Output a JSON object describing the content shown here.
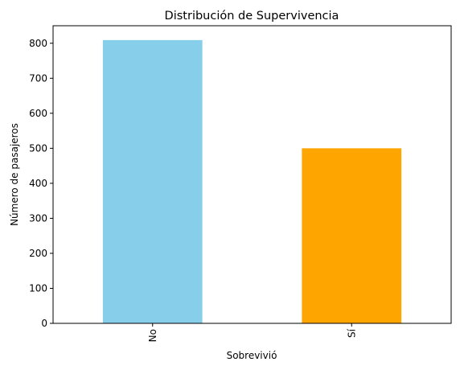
{
  "chart_data": {
    "type": "bar",
    "title": "Distribución de Supervivencia",
    "xlabel": "Sobrevivió",
    "ylabel": "Número de pasajeros",
    "categories": [
      "No",
      "Sí"
    ],
    "values": [
      809,
      500
    ],
    "colors": [
      "#87CEEB",
      "#FFA500"
    ],
    "ylim": [
      0,
      850
    ],
    "yticks": [
      0,
      100,
      200,
      300,
      400,
      500,
      600,
      700,
      800
    ],
    "grid": false,
    "legend": "none"
  }
}
